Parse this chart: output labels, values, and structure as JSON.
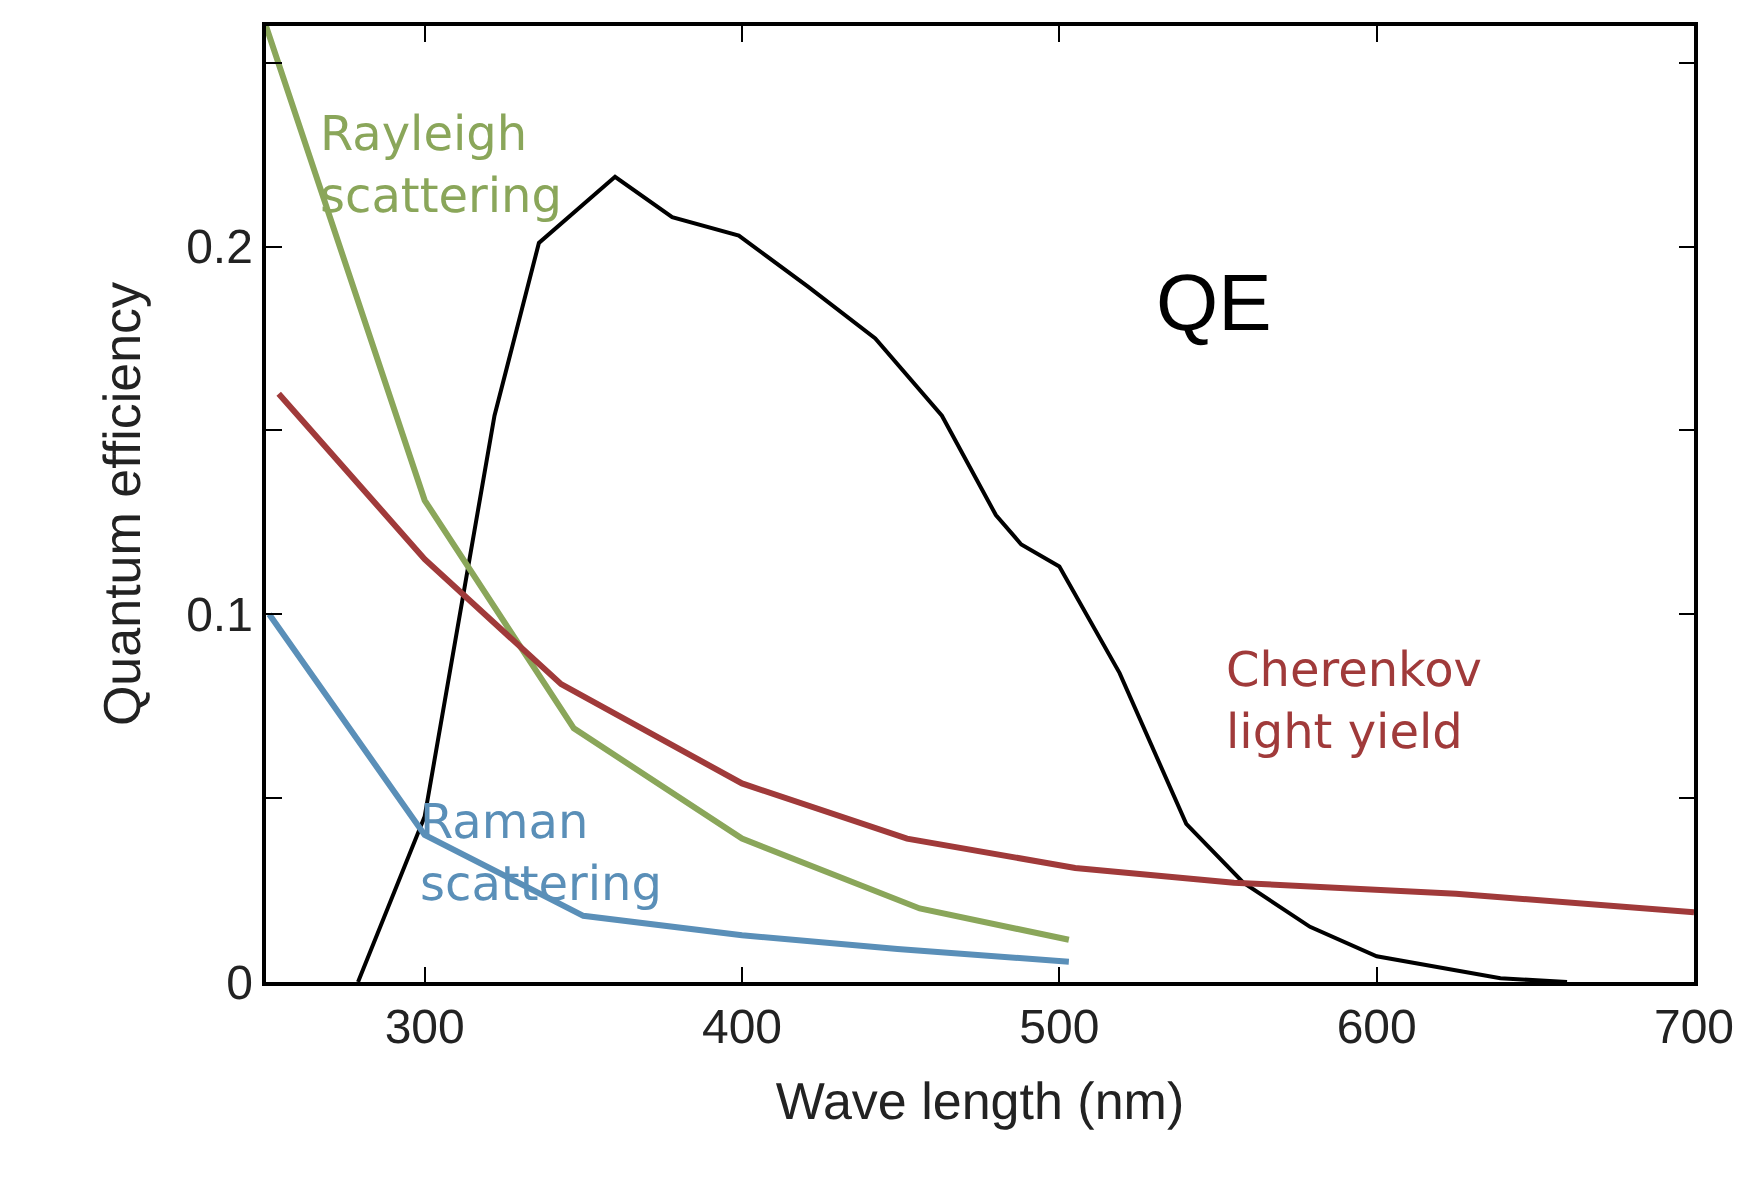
{
  "chart_data": {
    "type": "line",
    "xlabel": "Wave length (nm)",
    "ylabel": "Quantum efficiency",
    "xlim": [
      250,
      700
    ],
    "xticks": [
      300,
      400,
      500,
      600,
      700
    ],
    "ylim": [
      0,
      0.26
    ],
    "yticks": [
      0,
      {
        "value": 0.05,
        "label": null
      },
      0.1,
      {
        "value": 0.15,
        "label": null
      },
      0.2,
      {
        "value": 0.25,
        "label": null
      }
    ],
    "marker": "none",
    "line_style": "solid",
    "series": [
      {
        "name": "QE",
        "color": "#000000",
        "x": [
          279,
          300,
          322,
          336,
          360,
          378,
          399,
          421,
          442,
          463,
          480,
          488,
          500,
          519,
          540,
          558,
          579,
          600,
          639,
          660
        ],
        "values": [
          0,
          0.045,
          0.154,
          0.201,
          0.219,
          0.208,
          0.203,
          0.189,
          0.175,
          0.154,
          0.127,
          0.119,
          0.113,
          0.084,
          0.043,
          0.027,
          0.015,
          0.007,
          0.001,
          0
        ]
      },
      {
        "name": "Rayleigh\nscattering",
        "color": "#8aa65a",
        "x": [
          250,
          300,
          347,
          400,
          456,
          503
        ],
        "values": [
          0.26,
          0.131,
          0.069,
          0.039,
          0.02,
          0.0115
        ]
      },
      {
        "name": "Cherenkov\nlight yield",
        "color": "#a03a3a",
        "x": [
          254,
          300,
          343,
          400,
          452,
          505,
          555,
          625,
          700
        ],
        "values": [
          0.16,
          0.115,
          0.081,
          0.054,
          0.039,
          0.031,
          0.027,
          0.024,
          0.019
        ]
      },
      {
        "name": "Raman\nscattering",
        "color": "#5a8fb8",
        "x": [
          251,
          300,
          350,
          400,
          449,
          503
        ],
        "values": [
          0.1,
          0.04,
          0.018,
          0.0127,
          0.009,
          0.0055
        ]
      }
    ]
  }
}
